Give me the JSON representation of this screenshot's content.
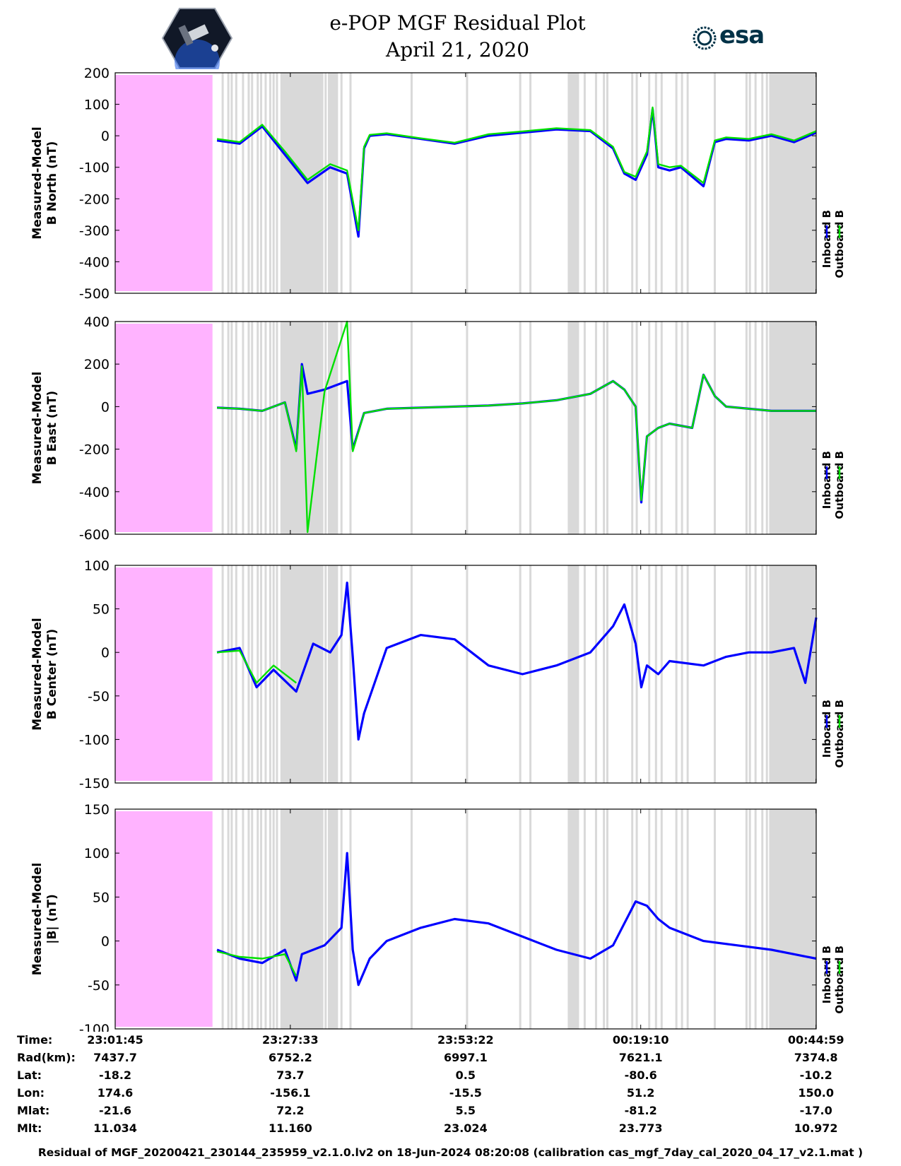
{
  "title": {
    "line1": "e-POP MGF Residual Plot",
    "line2": "April 21, 2020"
  },
  "logos": {
    "left": "cassiope-mission-logo",
    "right_text": "esa"
  },
  "colors": {
    "inboard": "#0000ff",
    "outboard": "#00e000",
    "gap_fill": "#d9d9d9",
    "nodata_fill": "#ffb3ff",
    "esa_brand": "#003247"
  },
  "legend": {
    "inboard": "Inboard B",
    "outboard": "Outboard B"
  },
  "chart_data": [
    {
      "type": "line",
      "ylabel": [
        "Measured-Model",
        "B North (nT)"
      ],
      "ylim": [
        -500,
        200
      ],
      "yticks": [
        200,
        100,
        0,
        -100,
        -200,
        -300,
        -400,
        -500
      ],
      "xlim": [
        0,
        6196
      ],
      "x_seconds": [
        0,
        900,
        1100,
        1300,
        1500,
        1700,
        1900,
        2050,
        2150,
        2200,
        2250,
        2400,
        2700,
        3000,
        3300,
        3600,
        3900,
        4200,
        4400,
        4500,
        4600,
        4700,
        4750,
        4800,
        4900,
        5000,
        5200,
        5300,
        5400,
        5600,
        5800,
        6000,
        6196
      ],
      "series": [
        {
          "name": "Inboard B",
          "values": [
            null,
            -15,
            -25,
            30,
            -60,
            -150,
            -100,
            -120,
            -320,
            -40,
            0,
            5,
            -10,
            -25,
            0,
            10,
            20,
            15,
            -40,
            -120,
            -140,
            -60,
            85,
            -100,
            -110,
            -100,
            -160,
            -20,
            -10,
            -15,
            0,
            -20,
            10
          ]
        },
        {
          "name": "Outboard B",
          "values": [
            null,
            -10,
            -20,
            35,
            -50,
            -140,
            -90,
            -110,
            -300,
            -35,
            3,
            8,
            -8,
            -22,
            5,
            14,
            24,
            18,
            -35,
            -115,
            -130,
            -50,
            90,
            -90,
            -100,
            -95,
            -150,
            -15,
            -5,
            -10,
            5,
            -15,
            15
          ]
        }
      ]
    },
    {
      "type": "line",
      "ylabel": [
        "Measured-Model",
        "B East (nT)"
      ],
      "ylim": [
        -600,
        400
      ],
      "yticks": [
        400,
        200,
        0,
        -200,
        -400,
        -600
      ],
      "xlim": [
        0,
        6196
      ],
      "x_seconds": [
        0,
        900,
        1100,
        1300,
        1500,
        1600,
        1650,
        1700,
        1850,
        2050,
        2100,
        2200,
        2300,
        2400,
        2700,
        3000,
        3300,
        3600,
        3900,
        4200,
        4400,
        4500,
        4600,
        4650,
        4700,
        4800,
        4900,
        5100,
        5200,
        5300,
        5400,
        5600,
        5800,
        6000,
        6196
      ],
      "series": [
        {
          "name": "Inboard B",
          "values": [
            null,
            -5,
            -10,
            -20,
            20,
            -200,
            200,
            60,
            80,
            120,
            -200,
            -30,
            -20,
            -10,
            -5,
            0,
            5,
            15,
            30,
            60,
            120,
            80,
            0,
            -450,
            -140,
            -100,
            -80,
            -100,
            150,
            50,
            0,
            -10,
            -20,
            -20,
            -20
          ]
        },
        {
          "name": "Outboard B",
          "values": [
            null,
            -5,
            -10,
            -20,
            20,
            -210,
            190,
            -590,
            70,
            400,
            -210,
            -30,
            -20,
            -10,
            -5,
            0,
            5,
            15,
            30,
            60,
            120,
            80,
            0,
            -440,
            -140,
            -100,
            -80,
            -100,
            150,
            50,
            0,
            -10,
            -20,
            -20,
            -20
          ]
        }
      ]
    },
    {
      "type": "line",
      "ylabel": [
        "Measured-Model",
        "B Center (nT)"
      ],
      "ylim": [
        -150,
        100
      ],
      "yticks": [
        100,
        50,
        0,
        -50,
        -100,
        -150
      ],
      "xlim": [
        0,
        6196
      ],
      "x_seconds": [
        0,
        900,
        1100,
        1250,
        1400,
        1600,
        1750,
        1900,
        2000,
        2050,
        2100,
        2150,
        2200,
        2400,
        2700,
        3000,
        3300,
        3600,
        3900,
        4200,
        4400,
        4500,
        4600,
        4650,
        4700,
        4800,
        4900,
        5200,
        5400,
        5600,
        5800,
        6000,
        6100,
        6196
      ],
      "series": [
        {
          "name": "Inboard B",
          "values": [
            null,
            0,
            5,
            -40,
            -20,
            -45,
            10,
            0,
            20,
            80,
            -5,
            -100,
            -70,
            5,
            20,
            15,
            -15,
            -25,
            -15,
            0,
            30,
            55,
            10,
            -40,
            -15,
            -25,
            -10,
            -15,
            -5,
            0,
            0,
            5,
            -35,
            40
          ]
        },
        {
          "name": "Outboard B",
          "values": [
            null,
            0,
            2,
            -35,
            -15,
            -35,
            null,
            null,
            null,
            null,
            null,
            null,
            null,
            null,
            null,
            null,
            null,
            null,
            null,
            null,
            null,
            null,
            null,
            null,
            null,
            null,
            null,
            null,
            null,
            null,
            null,
            null,
            null,
            null
          ]
        }
      ]
    },
    {
      "type": "line",
      "ylabel": [
        "Measured-Model",
        "|B| (nT)"
      ],
      "ylim": [
        -100,
        150
      ],
      "yticks": [
        150,
        100,
        50,
        0,
        -50,
        -100
      ],
      "xlim": [
        0,
        6196
      ],
      "x_seconds": [
        0,
        900,
        1100,
        1300,
        1500,
        1600,
        1650,
        1750,
        1850,
        2000,
        2050,
        2100,
        2150,
        2250,
        2400,
        2700,
        3000,
        3300,
        3600,
        3900,
        4200,
        4400,
        4500,
        4600,
        4700,
        4800,
        4900,
        5200,
        5500,
        5800,
        6000,
        6196
      ],
      "series": [
        {
          "name": "Inboard B",
          "values": [
            null,
            -10,
            -20,
            -25,
            -10,
            -45,
            -15,
            -10,
            -5,
            15,
            100,
            -10,
            -50,
            -20,
            0,
            15,
            25,
            20,
            5,
            -10,
            -20,
            -5,
            20,
            45,
            40,
            25,
            15,
            0,
            -5,
            -10,
            -15,
            -20
          ]
        },
        {
          "name": "Outboard B",
          "values": [
            null,
            -12,
            -18,
            -20,
            -15,
            -40,
            null,
            null,
            null,
            null,
            null,
            null,
            null,
            null,
            null,
            null,
            null,
            null,
            null,
            null,
            null,
            null,
            null,
            null,
            null,
            null,
            null,
            null,
            null,
            null,
            null,
            null
          ]
        }
      ]
    }
  ],
  "shading": {
    "nodata_range_seconds": [
      0,
      860
    ],
    "dense_gap_ranges_seconds": [
      [
        1460,
        1840
      ],
      [
        1880,
        1970
      ],
      [
        4000,
        4100
      ],
      [
        5780,
        6196
      ]
    ],
    "gap_line_seconds": [
      950,
      1000,
      1030,
      1070,
      1130,
      1180,
      1210,
      1260,
      1290,
      1330,
      1370,
      1400,
      1430,
      1860,
      2000,
      2080,
      2620,
      3110,
      3580,
      3670,
      4050,
      4150,
      4250,
      4320,
      4350,
      4570,
      4610,
      4720,
      4780,
      4830,
      4960,
      5010,
      5060,
      5300,
      5580,
      5610,
      5660,
      5720,
      5760
    ]
  },
  "x_ticks": {
    "positions_seconds": [
      0,
      1548,
      3097,
      4645,
      6194
    ]
  },
  "info_table": {
    "labels": [
      "Time:",
      "Rad(km):",
      "Lat:",
      "Lon:",
      "Mlat:",
      "Mlt:"
    ],
    "columns": [
      [
        "23:01:45",
        "7437.7",
        "-18.2",
        "174.6",
        "-21.6",
        "11.034"
      ],
      [
        "23:27:33",
        "6752.2",
        "73.7",
        "-156.1",
        "72.2",
        "11.160"
      ],
      [
        "23:53:22",
        "6997.1",
        "0.5",
        "-15.5",
        "5.5",
        "23.024"
      ],
      [
        "00:19:10",
        "7621.1",
        "-80.6",
        "51.2",
        "-81.2",
        "23.773"
      ],
      [
        "00:44:59",
        "7374.8",
        "-10.2",
        "150.0",
        "-17.0",
        "10.972"
      ]
    ]
  },
  "footer": "Residual of MGF_20200421_230144_235959_v2.1.0.lv2 on 18-Jun-2024 08:20:08 (calibration cas_mgf_7day_cal_2020_04_17_v2.1.mat )"
}
